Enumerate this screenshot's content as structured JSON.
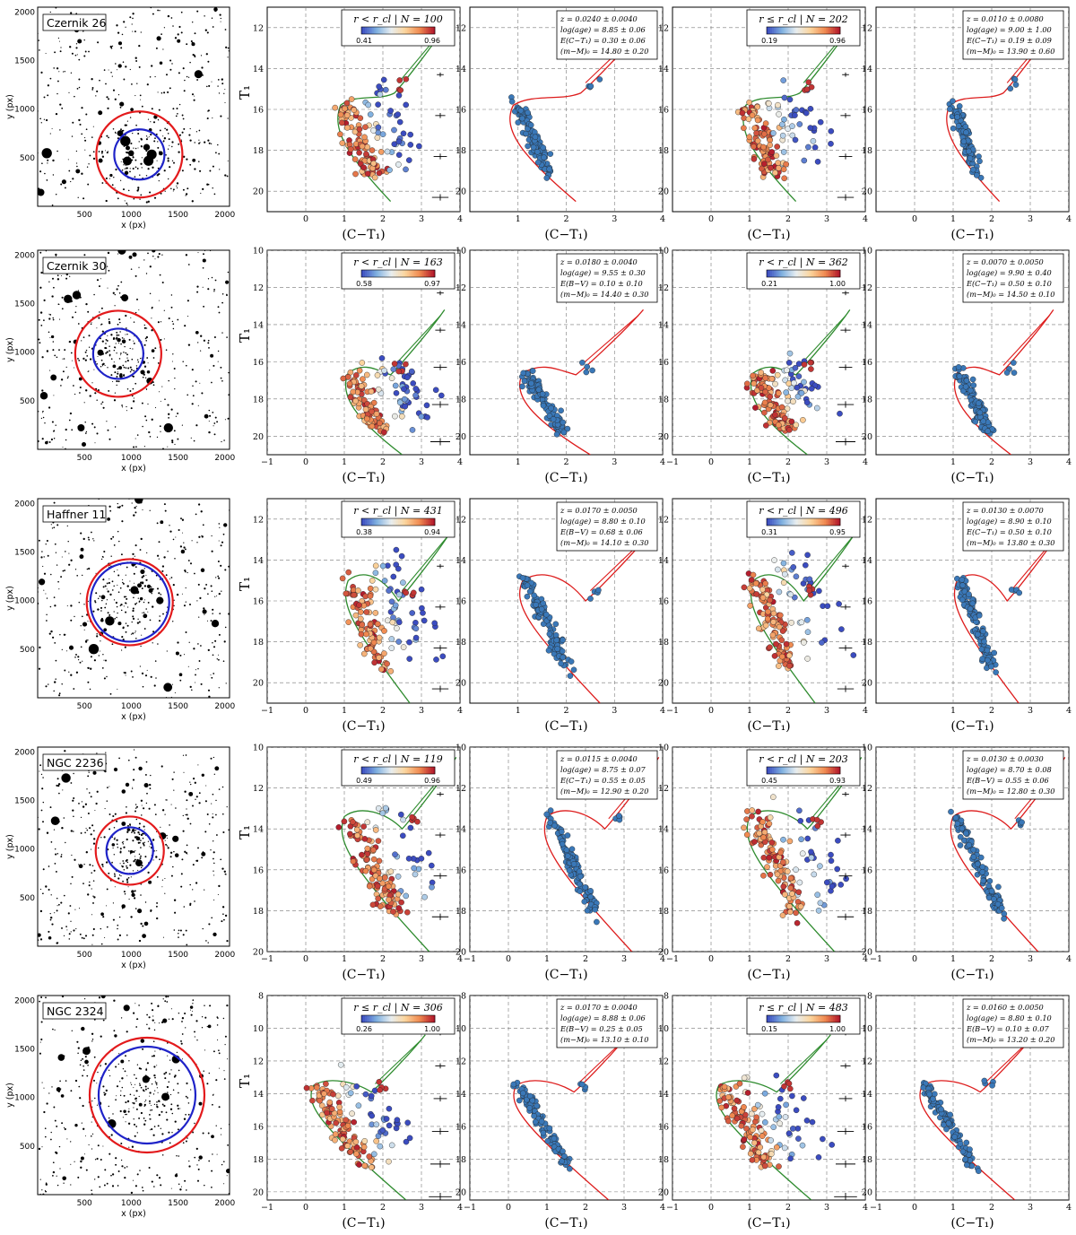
{
  "colors": {
    "isochrone_green": "#2e8b2e",
    "isochrone_red": "#dd1c1c",
    "field_circle_outer": "#e31a1c",
    "field_circle_inner": "#1f23c8",
    "member_blue": "#3a78b8",
    "cmap": [
      "#3b4cc0",
      "#7fb0e0",
      "#e8eef0",
      "#fbd49c",
      "#f08a50",
      "#b2182b"
    ]
  },
  "axis_labels": {
    "x_px": "x (px)",
    "y_px": "y (px)",
    "cmd_x": "(C−T₁)",
    "cmd_y": "T₁"
  },
  "clusters": [
    {
      "name": "Czernik 26",
      "field_ticks": [
        500,
        1000,
        1500,
        2000
      ],
      "panels": [
        {
          "legend": "r < r_cl | N = 100",
          "cbar": [
            "0.41",
            "0.96"
          ],
          "ylim": [
            21,
            11
          ],
          "yticks": [
            12,
            14,
            16,
            18,
            20
          ],
          "xticks": [
            0,
            1,
            2,
            3,
            4
          ]
        },
        {
          "params": [
            "z = 0.0240 ± 0.0040",
            "log(age) = 8.85 ± 0.06",
            "E(C−T₁) = 0.30 ± 0.06",
            "(m−M)₀ = 14.80 ± 0.20"
          ],
          "ylim": [
            21,
            11
          ],
          "yticks": [
            12,
            14,
            16,
            18,
            20
          ],
          "xticks": [
            1,
            2,
            3,
            4
          ]
        },
        {
          "legend": "r ≤ r_cl | N = 202",
          "cbar": [
            "0.19",
            "0.96"
          ],
          "ylim": [
            21,
            11
          ],
          "yticks": [
            12,
            14,
            16,
            18,
            20
          ],
          "xticks": [
            0,
            1,
            2,
            3,
            4
          ]
        },
        {
          "params": [
            "z = 0.0110 ± 0.0080",
            "log(age) = 9.00 ± 1.00",
            "E(C−T₁) = 0.19 ± 0.09",
            "(m−M)₀ = 13.90 ± 0.60"
          ],
          "ylim": [
            21,
            11
          ],
          "yticks": [
            12,
            14,
            16,
            18,
            20
          ],
          "xticks": [
            0,
            1,
            2,
            3,
            4
          ]
        }
      ]
    },
    {
      "name": "Czernik 30",
      "field_ticks": [
        500,
        1000,
        1500,
        2000
      ],
      "panels": [
        {
          "legend": "r < r_cl | N = 163",
          "cbar": [
            "0.58",
            "0.97"
          ],
          "ylim": [
            21,
            10
          ],
          "yticks": [
            10,
            12,
            14,
            16,
            18,
            20
          ],
          "xticks": [
            -1,
            0,
            1,
            2,
            3,
            4
          ]
        },
        {
          "params": [
            "z = 0.0180 ± 0.0040",
            "log(age) = 9.55 ± 0.30",
            "E(B−V) = 0.10 ± 0.10",
            "(m−M)₀ = 14.40 ± 0.30"
          ],
          "ylim": [
            21,
            10
          ],
          "yticks": [
            10,
            12,
            14,
            16,
            18,
            20
          ],
          "xticks": [
            1,
            2,
            3,
            4
          ]
        },
        {
          "legend": "r < r_cl | N = 362",
          "cbar": [
            "0.21",
            "1.00"
          ],
          "ylim": [
            21,
            10
          ],
          "yticks": [
            10,
            12,
            14,
            16,
            18,
            20
          ],
          "xticks": [
            -1,
            0,
            1,
            2,
            3,
            4
          ]
        },
        {
          "params": [
            "z = 0.0070 ± 0.0050",
            "log(age) = 9.90 ± 0.40",
            "E(C−T₁) = 0.50 ± 0.10",
            "(m−M)₀ = 14.50 ± 0.10"
          ],
          "ylim": [
            21,
            10
          ],
          "yticks": [
            10,
            12,
            14,
            16,
            18,
            20
          ],
          "xticks": [
            1,
            2,
            3,
            4
          ]
        }
      ]
    },
    {
      "name": "Haffner 11",
      "field_ticks": [
        500,
        1000,
        1500,
        2000
      ],
      "panels": [
        {
          "legend": "r < r_cl | N = 431",
          "cbar": [
            "0.38",
            "0.94"
          ],
          "ylim": [
            21,
            11
          ],
          "yticks": [
            12,
            14,
            16,
            18,
            20
          ],
          "xticks": [
            -1,
            0,
            1,
            2,
            3,
            4
          ]
        },
        {
          "params": [
            "z = 0.0170 ± 0.0050",
            "log(age) = 8.80 ± 0.10",
            "E(B−V) = 0.68 ± 0.06",
            "(m−M)₀ = 14.10 ± 0.30"
          ],
          "ylim": [
            21,
            11
          ],
          "yticks": [
            12,
            14,
            16,
            18,
            20
          ],
          "xticks": [
            1,
            2,
            3,
            4
          ]
        },
        {
          "legend": "r < r_cl | N = 496",
          "cbar": [
            "0.31",
            "0.95"
          ],
          "ylim": [
            21,
            11
          ],
          "yticks": [
            12,
            14,
            16,
            18,
            20
          ],
          "xticks": [
            -1,
            0,
            1,
            2,
            3,
            4
          ]
        },
        {
          "params": [
            "z = 0.0130 ± 0.0070",
            "log(age) = 8.90 ± 0.10",
            "E(C−T₁) = 0.50 ± 0.10",
            "(m−M)₀ = 13.80 ± 0.30"
          ],
          "ylim": [
            21,
            11
          ],
          "yticks": [
            12,
            14,
            16,
            18,
            20
          ],
          "xticks": [
            1,
            2,
            3,
            4
          ]
        }
      ]
    },
    {
      "name": "NGC 2236",
      "field_ticks": [
        500,
        1000,
        1500,
        2000
      ],
      "panels": [
        {
          "legend": "r < r_cl | N = 119",
          "cbar": [
            "0.49",
            "0.96"
          ],
          "ylim": [
            20,
            10
          ],
          "yticks": [
            10,
            12,
            14,
            16,
            18,
            20
          ],
          "xticks": [
            -1,
            0,
            1,
            2,
            3,
            4
          ]
        },
        {
          "params": [
            "z = 0.0115 ± 0.0040",
            "log(age) = 8.75 ± 0.07",
            "E(C−T₁) = 0.55 ± 0.05",
            "(m−M)₀ = 12.90 ± 0.20"
          ],
          "ylim": [
            20,
            10
          ],
          "yticks": [
            10,
            12,
            14,
            16,
            18,
            20
          ],
          "xticks": [
            -1,
            0,
            1,
            2,
            3,
            4
          ]
        },
        {
          "legend": "r < r_cl | N = 203",
          "cbar": [
            "0.45",
            "0.93"
          ],
          "ylim": [
            20,
            10
          ],
          "yticks": [
            10,
            12,
            14,
            16,
            18,
            20
          ],
          "xticks": [
            -1,
            0,
            1,
            2,
            3,
            4
          ]
        },
        {
          "params": [
            "z = 0.0130 ± 0.0030",
            "log(age) = 8.70 ± 0.08",
            "E(B−V) = 0.55 ± 0.06",
            "(m−M)₀ = 12.80 ± 0.30"
          ],
          "ylim": [
            20,
            10
          ],
          "yticks": [
            10,
            12,
            14,
            16,
            18,
            20
          ],
          "xticks": [
            -1,
            0,
            1,
            2,
            3,
            4
          ]
        }
      ]
    },
    {
      "name": "NGC 2324",
      "field_ticks": [
        500,
        1000,
        1500,
        2000
      ],
      "panels": [
        {
          "legend": "r ≤ r_cl | N = 306",
          "cbar": [
            "0.26",
            "1.00"
          ],
          "ylim": [
            20.5,
            8
          ],
          "yticks": [
            8,
            10,
            12,
            14,
            16,
            18,
            20
          ],
          "xticks": [
            -1,
            0,
            1,
            2,
            3,
            4
          ]
        },
        {
          "params": [
            "z = 0.0170 ± 0.0040",
            "log(age) = 8.88 ± 0.06",
            "E(B−V) = 0.25 ± 0.05",
            "(m−M)₀ = 13.10 ± 0.10"
          ],
          "ylim": [
            20.5,
            8
          ],
          "yticks": [
            8,
            10,
            12,
            14,
            16,
            18,
            20
          ],
          "xticks": [
            -1,
            0,
            1,
            2,
            3,
            4
          ]
        },
        {
          "legend": "r ≤ r_cl | N = 483",
          "cbar": [
            "0.15",
            "1.00"
          ],
          "ylim": [
            20.5,
            8
          ],
          "yticks": [
            8,
            10,
            12,
            14,
            16,
            18,
            20
          ],
          "xticks": [
            -1,
            0,
            1,
            2,
            3,
            4
          ]
        },
        {
          "params": [
            "z = 0.0160 ± 0.0050",
            "log(age) = 8.80 ± 0.10",
            "E(B−V) = 0.10 ± 0.07",
            "(m−M)₀ = 13.20 ± 0.20"
          ],
          "ylim": [
            20.5,
            8
          ],
          "yticks": [
            8,
            10,
            12,
            14,
            16,
            18,
            20
          ],
          "xticks": [
            -1,
            0,
            1,
            2,
            3,
            4
          ]
        }
      ]
    }
  ],
  "chart_data": {
    "type": "scatter",
    "description_kind": "grid of cluster field images and color-magnitude diagrams",
    "x_axis": "(C−T₁)",
    "y_axis": "T₁ (inverted)",
    "clusters": [
      "Czernik 26",
      "Czernik 30",
      "Haffner 11",
      "NGC 2236",
      "NGC 2324"
    ],
    "isochrone_anchor_points": {
      "Czernik 26": {
        "turnoff": [
          1.0,
          15.8
        ],
        "red_clump": [
          2.5,
          14.5
        ],
        "ms_bottom": [
          2.2,
          20.5
        ]
      },
      "Czernik 30": {
        "turnoff": [
          1.2,
          16.6
        ],
        "red_clump": [
          2.4,
          16.0
        ],
        "ms_bottom": [
          2.5,
          21.0
        ]
      },
      "Haffner 11": {
        "turnoff": [
          1.2,
          15.0
        ],
        "red_clump": [
          2.6,
          15.3
        ],
        "ms_bottom": [
          2.7,
          21.0
        ]
      },
      "NGC 2236": {
        "turnoff": [
          1.1,
          13.4
        ],
        "red_clump": [
          2.7,
          13.3
        ],
        "ms_bottom": [
          3.2,
          20.0
        ]
      },
      "NGC 2324": {
        "turnoff": [
          0.3,
          13.5
        ],
        "red_clump": [
          1.9,
          13.2
        ],
        "ms_bottom": [
          2.6,
          20.5
        ]
      }
    },
    "grid": true
  }
}
